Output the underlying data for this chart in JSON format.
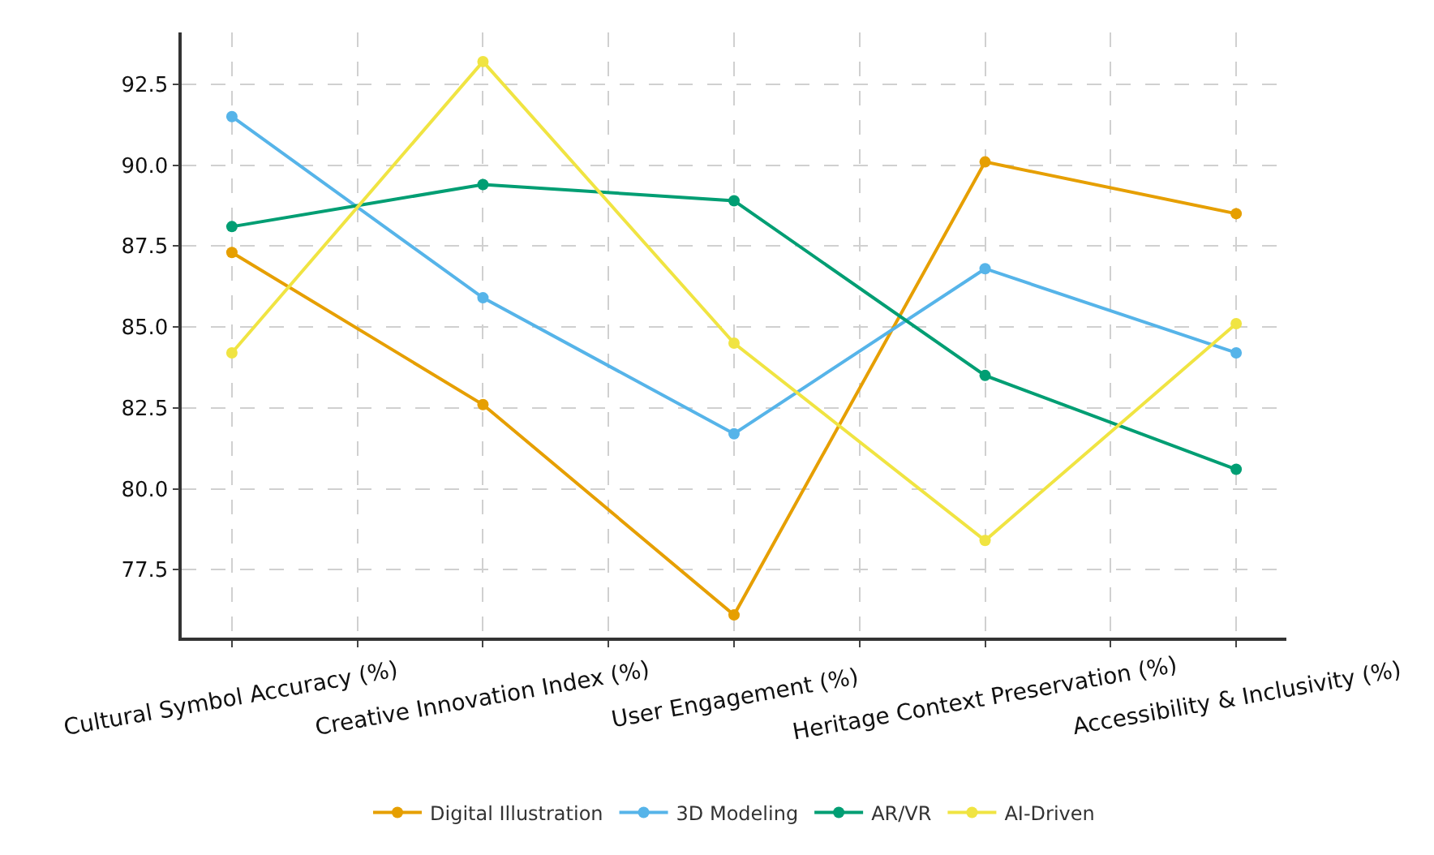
{
  "chart_data": {
    "type": "line",
    "categories": [
      "Cultural Symbol Accuracy (%)",
      "Creative Innovation Index (%)",
      "User Engagement (%)",
      "Heritage Context Preservation (%)",
      "Accessibility & Inclusivity (%)"
    ],
    "series": [
      {
        "name": "Digital Illustration",
        "color": "#e69f00",
        "values": [
          87.3,
          82.6,
          76.1,
          90.1,
          88.5
        ]
      },
      {
        "name": "3D Modeling",
        "color": "#56b4e9",
        "values": [
          91.5,
          85.9,
          81.7,
          86.8,
          84.2
        ]
      },
      {
        "name": "AR/VR",
        "color": "#009e73",
        "values": [
          88.1,
          89.4,
          88.9,
          83.5,
          80.6
        ]
      },
      {
        "name": "AI-Driven",
        "color": "#f0e442",
        "values": [
          84.2,
          93.2,
          84.5,
          78.4,
          85.1
        ]
      }
    ],
    "ylim": [
      75.4,
      94.1
    ],
    "yticks": [
      77.5,
      {
        "value": 80,
        "label": "80.0"
      },
      82.5,
      {
        "value": 85,
        "label": "85.0"
      },
      87.5,
      {
        "value": 90,
        "label": "90.0"
      },
      92.5
    ],
    "grid": true,
    "legend": "bottom",
    "marker": "circle",
    "line_style": "solid"
  }
}
